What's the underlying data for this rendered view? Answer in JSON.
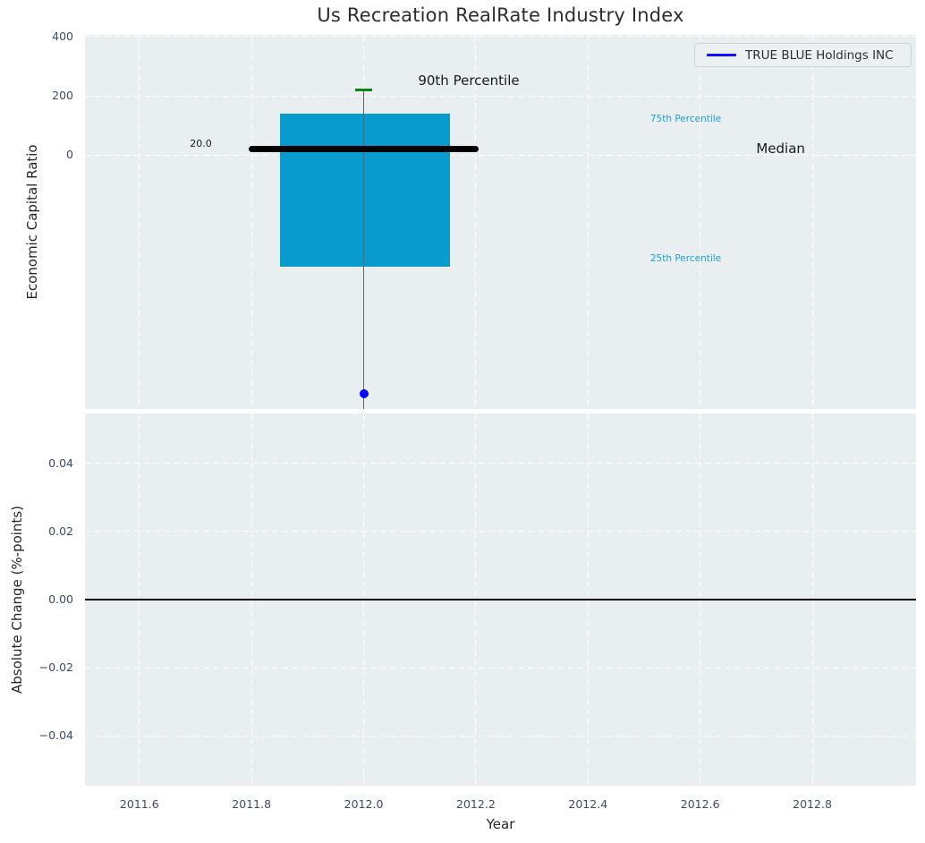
{
  "colors": {
    "figure_bg": "#ffffff",
    "axes_bg": "#e9eef0",
    "grid": "#ffffff",
    "box_fill": "#089bce",
    "whisker": "#646464",
    "p90_dash": "#0c860c",
    "median_line": "#000000",
    "company_point": "#0000ff",
    "percentile_label": "#1f9fce",
    "tick_label": "#3b4c63",
    "axis_label": "#262626",
    "title": "#2d2d2d",
    "legend_bg": "#edf0f2",
    "legend_border": "#cfd3d8"
  },
  "chart_data": [
    {
      "type": "box",
      "title": "Us Recreation RealRate Industry Index",
      "ylabel": "Economic Capital Ratio",
      "legend": {
        "label": "TRUE BLUE Holdings INC",
        "line_color": "#0000ff",
        "position": "upper right"
      },
      "grid": true,
      "xlim": [
        2011.503,
        2012.985
      ],
      "ylim": [
        -855,
        405
      ],
      "yticks": {
        "values": [
          400,
          200,
          0
        ],
        "labels": [
          "400",
          "200",
          "0"
        ]
      },
      "xticks": {
        "values": [
          2011.6,
          2011.8,
          2012.0,
          2012.2,
          2012.4,
          2012.6,
          2012.8
        ],
        "labels": []
      },
      "box": {
        "x_center": 2012.0,
        "x_left": 2011.85,
        "x_right": 2012.154,
        "p90": 220,
        "p75": 140,
        "median": 20,
        "p25": -375,
        "whisker_low": -880,
        "median_x_left": 2011.795,
        "median_x_right": 2012.205,
        "p90_dash_half_width": 0.015,
        "median_value_label": "20.0"
      },
      "company_point": {
        "name": "TRUE BLUE Holdings INC",
        "x": 2012.0,
        "y": -805
      },
      "annotations": [
        {
          "text": "90th Percentile",
          "x": 2012.097,
          "y": 247,
          "color": "#1a1a1a",
          "size": 15
        },
        {
          "text": "75th Percentile",
          "x": 2012.511,
          "y": 116,
          "color": "#1f9fce",
          "size": 10.5
        },
        {
          "text": "Median",
          "x": 2012.7,
          "y": 17,
          "color": "#1a1a1a",
          "size": 15
        },
        {
          "text": "25th Percentile",
          "x": 2012.511,
          "y": -353,
          "color": "#1f9fce",
          "size": 10.5
        },
        {
          "text": "20.0",
          "x": 2011.69,
          "y": 35,
          "color": "#1a1a1a",
          "size": 11
        }
      ]
    },
    {
      "type": "line",
      "ylabel": "Absolute Change (%-points)",
      "xlabel": "Year",
      "grid": true,
      "xlim": [
        2011.503,
        2012.985
      ],
      "ylim": [
        -0.0547,
        0.0547
      ],
      "yticks": {
        "values": [
          0.04,
          0.02,
          0.0,
          -0.02,
          -0.04
        ],
        "labels": [
          "0.04",
          "0.02",
          "0.00",
          "−0.02",
          "−0.04"
        ]
      },
      "xticks": {
        "values": [
          2011.6,
          2011.8,
          2012.0,
          2012.2,
          2012.4,
          2012.6,
          2012.8
        ],
        "labels": [
          "2011.6",
          "2011.8",
          "2012.0",
          "2012.2",
          "2012.4",
          "2012.6",
          "2012.8"
        ]
      },
      "zero_line_y": 0.0,
      "series": []
    }
  ]
}
